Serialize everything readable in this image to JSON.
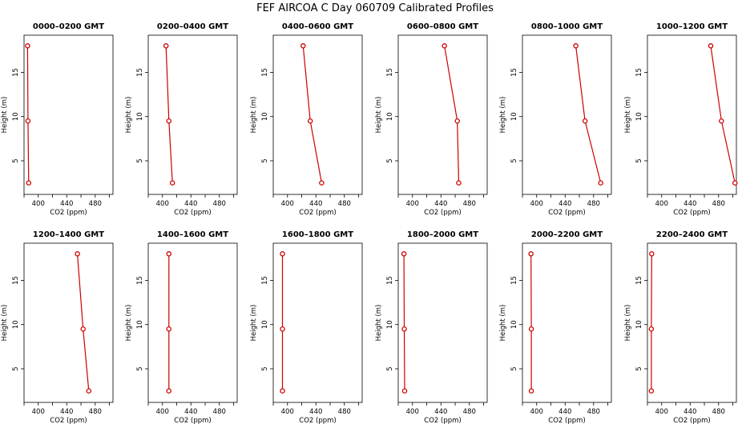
{
  "figure": {
    "title": "FEF AIRCOA C  Day 060709  Calibrated Profiles"
  },
  "chart_data": [
    {
      "type": "line",
      "title": "0000–0200 GMT",
      "xlabel": "CO2 (ppm)",
      "ylabel": "Height (m)",
      "xlim": [
        380,
        505
      ],
      "ylim": [
        1.2,
        19.2
      ],
      "xticks": [
        400,
        440,
        480
      ],
      "yticks": [
        5,
        10,
        15
      ],
      "x": [
        385,
        385.5,
        386.5
      ],
      "y": [
        18.0,
        9.5,
        2.5
      ]
    },
    {
      "type": "line",
      "title": "0200–0400 GMT",
      "xlabel": "CO2 (ppm)",
      "ylabel": "Height (m)",
      "xlim": [
        380,
        505
      ],
      "ylim": [
        1.2,
        19.2
      ],
      "xticks": [
        400,
        440,
        480
      ],
      "yticks": [
        5,
        10,
        15
      ],
      "x": [
        405,
        409,
        414
      ],
      "y": [
        18.0,
        9.5,
        2.5
      ]
    },
    {
      "type": "line",
      "title": "0400–0600 GMT",
      "xlabel": "CO2 (ppm)",
      "ylabel": "Height (m)",
      "xlim": [
        380,
        505
      ],
      "ylim": [
        1.2,
        19.2
      ],
      "xticks": [
        400,
        440,
        480
      ],
      "yticks": [
        5,
        10,
        15
      ],
      "x": [
        422,
        432,
        448
      ],
      "y": [
        18.0,
        9.5,
        2.5
      ]
    },
    {
      "type": "line",
      "title": "0600–0800 GMT",
      "xlabel": "CO2 (ppm)",
      "ylabel": "Height (m)",
      "xlim": [
        380,
        505
      ],
      "ylim": [
        1.2,
        19.2
      ],
      "xticks": [
        400,
        440,
        480
      ],
      "yticks": [
        5,
        10,
        15
      ],
      "x": [
        445,
        463,
        465
      ],
      "y": [
        18.0,
        9.5,
        2.5
      ]
    },
    {
      "type": "line",
      "title": "0800–1000 GMT",
      "xlabel": "CO2 (ppm)",
      "ylabel": "Height (m)",
      "xlim": [
        380,
        505
      ],
      "ylim": [
        1.2,
        19.2
      ],
      "xticks": [
        400,
        440,
        480
      ],
      "yticks": [
        5,
        10,
        15
      ],
      "x": [
        455,
        468,
        490
      ],
      "y": [
        18.0,
        9.5,
        2.5
      ]
    },
    {
      "type": "line",
      "title": "1000–1200 GMT",
      "xlabel": "CO2 (ppm)",
      "ylabel": "Height (m)",
      "xlim": [
        380,
        505
      ],
      "ylim": [
        1.2,
        19.2
      ],
      "xticks": [
        400,
        440,
        480
      ],
      "yticks": [
        5,
        10,
        15
      ],
      "x": [
        469,
        484,
        503
      ],
      "y": [
        18.0,
        9.5,
        2.5
      ]
    },
    {
      "type": "line",
      "title": "1200–1400 GMT",
      "xlabel": "CO2 (ppm)",
      "ylabel": "Height (m)",
      "xlim": [
        380,
        505
      ],
      "ylim": [
        1.2,
        19.2
      ],
      "xticks": [
        400,
        440,
        480
      ],
      "yticks": [
        5,
        10,
        15
      ],
      "x": [
        455,
        463,
        471
      ],
      "y": [
        18.0,
        9.5,
        2.5
      ]
    },
    {
      "type": "line",
      "title": "1400–1600 GMT",
      "xlabel": "CO2 (ppm)",
      "ylabel": "Height (m)",
      "xlim": [
        380,
        505
      ],
      "ylim": [
        1.2,
        19.2
      ],
      "xticks": [
        400,
        440,
        480
      ],
      "yticks": [
        5,
        10,
        15
      ],
      "x": [
        409,
        409,
        409
      ],
      "y": [
        18.0,
        9.5,
        2.5
      ]
    },
    {
      "type": "line",
      "title": "1600–1800 GMT",
      "xlabel": "CO2 (ppm)",
      "ylabel": "Height (m)",
      "xlim": [
        380,
        505
      ],
      "ylim": [
        1.2,
        19.2
      ],
      "xticks": [
        400,
        440,
        480
      ],
      "yticks": [
        5,
        10,
        15
      ],
      "x": [
        393,
        393,
        393
      ],
      "y": [
        18.0,
        9.5,
        2.5
      ]
    },
    {
      "type": "line",
      "title": "1800–2000 GMT",
      "xlabel": "CO2 (ppm)",
      "ylabel": "Height (m)",
      "xlim": [
        380,
        505
      ],
      "ylim": [
        1.2,
        19.2
      ],
      "xticks": [
        400,
        440,
        480
      ],
      "yticks": [
        5,
        10,
        15
      ],
      "x": [
        388,
        388.5,
        389
      ],
      "y": [
        18.0,
        9.5,
        2.5
      ]
    },
    {
      "type": "line",
      "title": "2000–2200 GMT",
      "xlabel": "CO2 (ppm)",
      "ylabel": "Height (m)",
      "xlim": [
        380,
        505
      ],
      "ylim": [
        1.2,
        19.2
      ],
      "xticks": [
        400,
        440,
        480
      ],
      "yticks": [
        5,
        10,
        15
      ],
      "x": [
        392,
        392.5,
        392.5
      ],
      "y": [
        18.0,
        9.5,
        2.5
      ]
    },
    {
      "type": "line",
      "title": "2200–2400 GMT",
      "xlabel": "CO2 (ppm)",
      "ylabel": "Height (m)",
      "xlim": [
        380,
        505
      ],
      "ylim": [
        1.2,
        19.2
      ],
      "xticks": [
        400,
        440,
        480
      ],
      "yticks": [
        5,
        10,
        15
      ],
      "x": [
        386,
        385.5,
        385.5
      ],
      "y": [
        18.0,
        9.5,
        2.5
      ]
    }
  ]
}
